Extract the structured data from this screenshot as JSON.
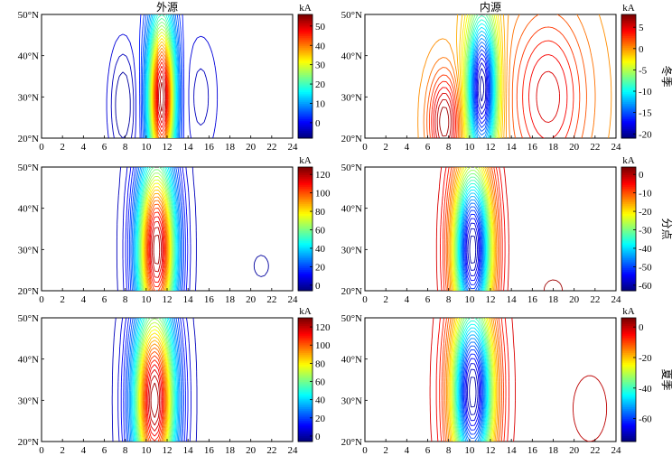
{
  "chart_data": [
    {
      "type": "contour",
      "row": 0,
      "col": 0,
      "title": "外源",
      "season": "",
      "colorbar_unit": "kA",
      "colorbar_ticks": [
        "0",
        "10",
        "20",
        "30",
        "40",
        "50"
      ],
      "clim": [
        -8,
        56
      ],
      "xlim": [
        0,
        24
      ],
      "ylim": [
        20,
        50
      ],
      "x_ticks": [
        "0",
        "2",
        "4",
        "6",
        "8",
        "10",
        "12",
        "14",
        "16",
        "18",
        "20",
        "22",
        "24"
      ],
      "y_ticks": [
        "20°N",
        "30°N",
        "40°N",
        "50°N"
      ],
      "peaks": [
        {
          "x": 11.5,
          "y": 30,
          "value": 56,
          "sx": 0.9,
          "sy": 14
        },
        {
          "x": 7.8,
          "y": 28,
          "value": -8,
          "sx": 1.0,
          "sy": 11
        },
        {
          "x": 15.2,
          "y": 30,
          "value": -5,
          "sx": 1.3,
          "sy": 12
        }
      ],
      "baseline": 0
    },
    {
      "type": "contour",
      "row": 0,
      "col": 1,
      "title": "内源",
      "season": "冬季",
      "colorbar_unit": "kA",
      "colorbar_ticks": [
        "5",
        "0",
        "-5",
        "-10",
        "-15",
        "-20"
      ],
      "clim": [
        -21,
        8
      ],
      "xlim": [
        0,
        24
      ],
      "ylim": [
        20,
        50
      ],
      "x_ticks": [
        "0",
        "2",
        "4",
        "6",
        "8",
        "10",
        "12",
        "14",
        "16",
        "18",
        "20",
        "22",
        "24"
      ],
      "y_ticks": [
        "20°N",
        "30°N",
        "40°N",
        "50°N"
      ],
      "peaks": [
        {
          "x": 11.2,
          "y": 32,
          "value": -21,
          "sx": 1.0,
          "sy": 13
        },
        {
          "x": 7.6,
          "y": 24,
          "value": 8,
          "sx": 1.0,
          "sy": 8
        },
        {
          "x": 17.5,
          "y": 30,
          "value": 6,
          "sx": 2.5,
          "sy": 14
        }
      ],
      "baseline": 0
    },
    {
      "type": "contour",
      "row": 1,
      "col": 0,
      "title": "",
      "season": "",
      "colorbar_unit": "kA",
      "colorbar_ticks": [
        "0",
        "20",
        "40",
        "60",
        "80",
        "100",
        "120"
      ],
      "clim": [
        -6,
        128
      ],
      "xlim": [
        0,
        24
      ],
      "ylim": [
        20,
        50
      ],
      "x_ticks": [
        "0",
        "2",
        "4",
        "6",
        "8",
        "10",
        "12",
        "14",
        "16",
        "18",
        "20",
        "22",
        "24"
      ],
      "y_ticks": [
        "20°N",
        "30°N",
        "40°N",
        "50°N"
      ],
      "peaks": [
        {
          "x": 11.0,
          "y": 30,
          "value": 128,
          "sx": 1.3,
          "sy": 16
        },
        {
          "x": 21.0,
          "y": 26,
          "value": -3,
          "sx": 0.8,
          "sy": 3
        }
      ],
      "baseline": 0
    },
    {
      "type": "contour",
      "row": 1,
      "col": 1,
      "title": "",
      "season": "分点",
      "colorbar_unit": "kA",
      "colorbar_ticks": [
        "0",
        "-10",
        "-20",
        "-30",
        "-40",
        "-50",
        "-60"
      ],
      "clim": [
        -63,
        4
      ],
      "xlim": [
        0,
        24
      ],
      "ylim": [
        20,
        50
      ],
      "x_ticks": [
        "0",
        "2",
        "4",
        "6",
        "8",
        "10",
        "12",
        "14",
        "16",
        "18",
        "20",
        "22",
        "24"
      ],
      "y_ticks": [
        "20°N",
        "30°N",
        "40°N",
        "50°N"
      ],
      "peaks": [
        {
          "x": 10.3,
          "y": 30,
          "value": -63,
          "sx": 1.3,
          "sy": 15
        },
        {
          "x": 18.0,
          "y": 20,
          "value": 3,
          "sx": 1.0,
          "sy": 3
        }
      ],
      "baseline": 0
    },
    {
      "type": "contour",
      "row": 2,
      "col": 0,
      "title": "",
      "season": "",
      "colorbar_unit": "kA",
      "colorbar_ticks": [
        "0",
        "20",
        "40",
        "60",
        "80",
        "100",
        "120"
      ],
      "clim": [
        -6,
        130
      ],
      "xlim": [
        0,
        24
      ],
      "ylim": [
        20,
        50
      ],
      "x_ticks": [
        "0",
        "2",
        "4",
        "6",
        "8",
        "10",
        "12",
        "14",
        "16",
        "18",
        "20",
        "22",
        "24"
      ],
      "y_ticks": [
        "20°N",
        "30°N",
        "40°N",
        "50°N"
      ],
      "peaks": [
        {
          "x": 10.8,
          "y": 30,
          "value": 130,
          "sx": 1.4,
          "sy": 17
        }
      ],
      "baseline": 0
    },
    {
      "type": "contour",
      "row": 2,
      "col": 1,
      "title": "",
      "season": "夏季",
      "colorbar_unit": "kA",
      "colorbar_ticks": [
        "0",
        "-20",
        "-40",
        "-60"
      ],
      "clim": [
        -75,
        6
      ],
      "xlim": [
        0,
        24
      ],
      "ylim": [
        20,
        50
      ],
      "x_ticks": [
        "0",
        "2",
        "4",
        "6",
        "8",
        "10",
        "12",
        "14",
        "16",
        "18",
        "20",
        "22",
        "24"
      ],
      "y_ticks": [
        "20°N",
        "30°N",
        "40°N",
        "50°N"
      ],
      "peaks": [
        {
          "x": 10.3,
          "y": 32,
          "value": -75,
          "sx": 1.4,
          "sy": 16
        },
        {
          "x": 21.5,
          "y": 28,
          "value": 3,
          "sx": 1.2,
          "sy": 6
        }
      ],
      "baseline": 0
    }
  ]
}
